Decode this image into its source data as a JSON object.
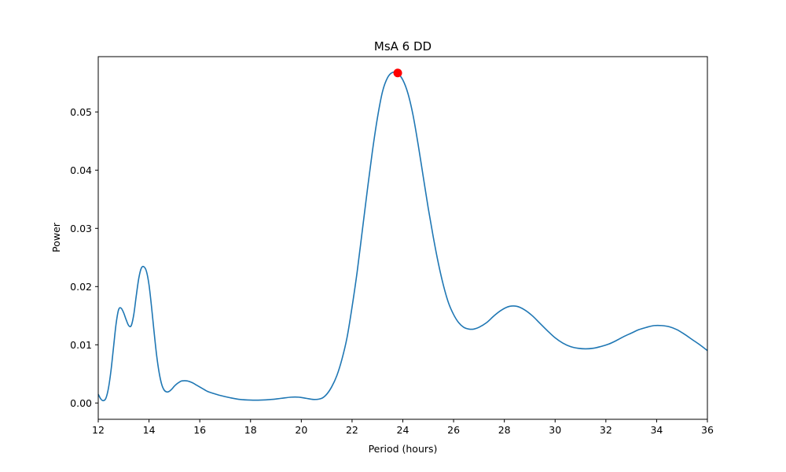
{
  "chart_data": {
    "type": "line",
    "title": "MsA 6 DD",
    "xlabel": "Period (hours)",
    "ylabel": "Power",
    "xlim": [
      12,
      36
    ],
    "ylim": [
      -0.0028,
      0.0595
    ],
    "xticks": [
      12,
      14,
      16,
      18,
      20,
      22,
      24,
      26,
      28,
      30,
      32,
      34,
      36
    ],
    "xtick_labels": [
      "12",
      "14",
      "16",
      "18",
      "20",
      "22",
      "24",
      "26",
      "28",
      "30",
      "32",
      "34",
      "36"
    ],
    "yticks": [
      0.0,
      0.01,
      0.02,
      0.03,
      0.04,
      0.05
    ],
    "ytick_labels": [
      "0.00",
      "0.01",
      "0.02",
      "0.03",
      "0.04",
      "0.05"
    ],
    "grid": false,
    "series": [
      {
        "color": "#1f77b4",
        "x": [
          12.0,
          12.1,
          12.2,
          12.3,
          12.4,
          12.5,
          12.6,
          12.7,
          12.8,
          12.9,
          13.0,
          13.1,
          13.2,
          13.3,
          13.4,
          13.5,
          13.6,
          13.7,
          13.8,
          13.9,
          14.0,
          14.1,
          14.2,
          14.3,
          14.4,
          14.5,
          14.6,
          14.7,
          14.8,
          14.9,
          15.0,
          15.1,
          15.2,
          15.3,
          15.5,
          15.7,
          15.9,
          16.1,
          16.3,
          16.5,
          16.8,
          17.2,
          17.6,
          18.0,
          18.4,
          18.8,
          19.2,
          19.6,
          19.9,
          20.2,
          20.5,
          20.8,
          21.0,
          21.2,
          21.4,
          21.6,
          21.8,
          22.0,
          22.2,
          22.4,
          22.6,
          22.8,
          23.0,
          23.2,
          23.4,
          23.6,
          23.8,
          24.0,
          24.2,
          24.4,
          24.6,
          24.8,
          25.0,
          25.2,
          25.4,
          25.6,
          25.8,
          26.0,
          26.2,
          26.4,
          26.6,
          26.8,
          27.0,
          27.3,
          27.6,
          27.9,
          28.2,
          28.5,
          28.8,
          29.1,
          29.4,
          29.7,
          30.0,
          30.3,
          30.6,
          30.9,
          31.2,
          31.5,
          31.8,
          32.1,
          32.4,
          32.7,
          33.0,
          33.3,
          33.6,
          33.9,
          34.2,
          34.5,
          34.8,
          35.1,
          35.4,
          35.7,
          36.0
        ],
        "y": [
          0.0015,
          0.0007,
          0.0004,
          0.0008,
          0.0025,
          0.0055,
          0.0095,
          0.0135,
          0.016,
          0.0163,
          0.0155,
          0.0143,
          0.0133,
          0.0133,
          0.0152,
          0.0185,
          0.0215,
          0.0232,
          0.0234,
          0.0226,
          0.0203,
          0.0165,
          0.0122,
          0.0082,
          0.0052,
          0.0032,
          0.0022,
          0.0019,
          0.002,
          0.0024,
          0.0029,
          0.0033,
          0.0036,
          0.0038,
          0.0038,
          0.0035,
          0.003,
          0.0025,
          0.002,
          0.0017,
          0.0013,
          0.0009,
          0.0006,
          0.0005,
          0.0005,
          0.0006,
          0.0008,
          0.001,
          0.001,
          0.0008,
          0.0006,
          0.0008,
          0.0015,
          0.0028,
          0.0047,
          0.0075,
          0.0112,
          0.0165,
          0.0225,
          0.0295,
          0.0365,
          0.0432,
          0.049,
          0.0535,
          0.0559,
          0.0568,
          0.0566,
          0.0555,
          0.0532,
          0.0495,
          0.0445,
          0.039,
          0.0335,
          0.0285,
          0.024,
          0.0202,
          0.0172,
          0.0152,
          0.0138,
          0.013,
          0.0127,
          0.0127,
          0.013,
          0.0138,
          0.015,
          0.016,
          0.0166,
          0.0166,
          0.016,
          0.015,
          0.0137,
          0.0124,
          0.0112,
          0.0103,
          0.0097,
          0.0094,
          0.0093,
          0.0094,
          0.0097,
          0.0101,
          0.0107,
          0.0114,
          0.012,
          0.0126,
          0.013,
          0.0133,
          0.0133,
          0.0131,
          0.0126,
          0.0118,
          0.0109,
          0.01,
          0.009
        ]
      }
    ],
    "peak_marker": {
      "x": 23.8,
      "y": 0.0567,
      "color": "#ff0000"
    }
  }
}
